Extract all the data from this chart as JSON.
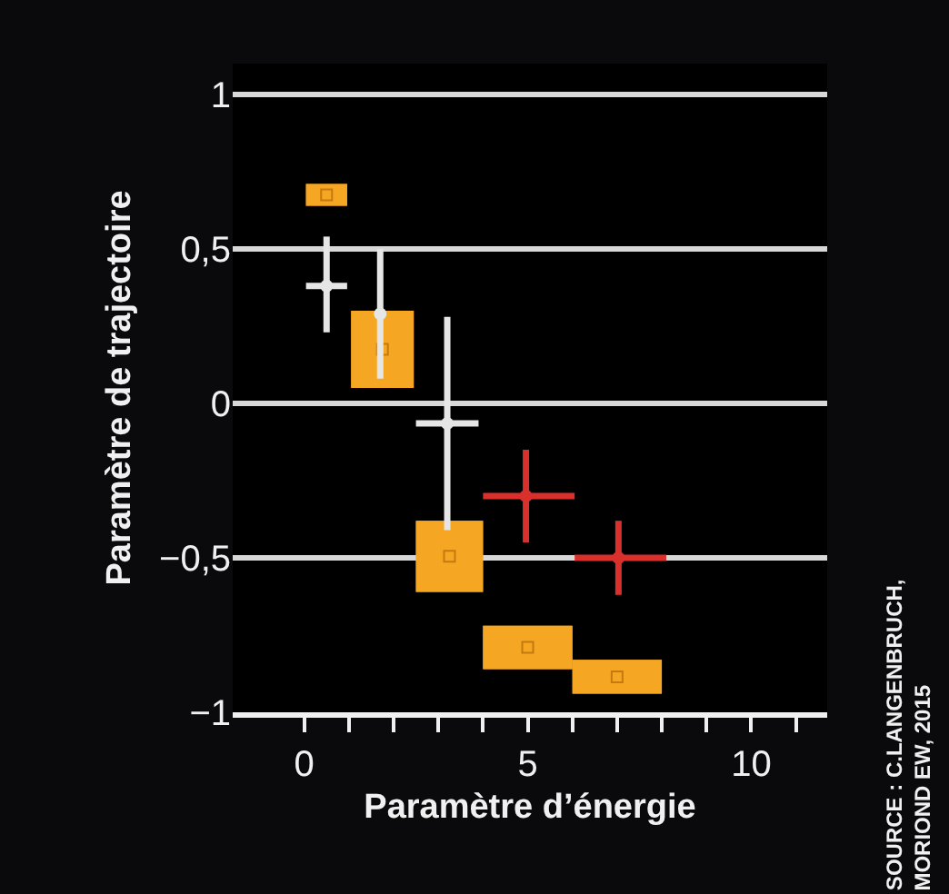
{
  "chart_data": {
    "type": "scatter",
    "xlabel": "Paramètre d’énergie",
    "ylabel": "Paramètre de trajectoire",
    "xlim": [
      -1.6,
      11.7
    ],
    "ylim": [
      -1,
      1.1
    ],
    "xticks": [
      0,
      {
        "value": 1,
        "label": null
      },
      {
        "value": 2,
        "label": null
      },
      {
        "value": 3,
        "label": null
      },
      {
        "value": 4,
        "label": null
      },
      5,
      {
        "value": 6,
        "label": null
      },
      {
        "value": 7,
        "label": null
      },
      {
        "value": 8,
        "label": null
      },
      {
        "value": 9,
        "label": null
      },
      10,
      {
        "value": 11,
        "label": null
      }
    ],
    "yticks": [
      {
        "value": -1,
        "label": "−1"
      },
      {
        "value": -0.5,
        "label": "−0,5"
      },
      0,
      {
        "value": 0.5,
        "label": "0,5"
      },
      1
    ],
    "grid": "y",
    "series": [
      {
        "color": "#f5a623",
        "marker": "square",
        "x": [
          0.5,
          1.75,
          3.25,
          5.0,
          7.0
        ],
        "values": [
          0.675,
          0.175,
          -0.495,
          -0.79,
          -0.885
        ],
        "xerrors": [
          [
            0.04,
            0.96
          ],
          [
            1.05,
            2.45
          ],
          [
            2.5,
            4.0
          ],
          [
            4.0,
            6.0
          ],
          [
            6.0,
            8.0
          ]
        ],
        "errors": [
          [
            0.64,
            0.71
          ],
          [
            0.05,
            0.3
          ],
          [
            -0.61,
            -0.38
          ],
          [
            -0.86,
            -0.72
          ],
          [
            -0.94,
            -0.83
          ]
        ]
      },
      {
        "color": "#e6e6e6",
        "marker": "circle",
        "x": [
          0.5,
          1.7,
          3.2
        ],
        "values": [
          0.38,
          0.29,
          -0.065
        ],
        "xerrors": [
          [
            0.04,
            0.96
          ],
          null,
          [
            2.5,
            3.9
          ]
        ],
        "errors": [
          [
            0.23,
            0.54
          ],
          [
            0.08,
            0.5
          ],
          [
            -0.41,
            0.28
          ]
        ]
      },
      {
        "color": "#d9302c",
        "marker": "circle",
        "x": [
          4.96,
          7.03
        ],
        "values": [
          -0.3,
          -0.5
        ],
        "xerrors": [
          [
            4.0,
            6.05
          ],
          [
            6.05,
            8.1
          ]
        ],
        "errors": [
          [
            -0.45,
            -0.15
          ],
          [
            -0.62,
            -0.38
          ]
        ]
      }
    ],
    "annotations": [
      "SOURCE : C.LANGENBRUCH,",
      "MORIOND EW, 2015"
    ]
  }
}
